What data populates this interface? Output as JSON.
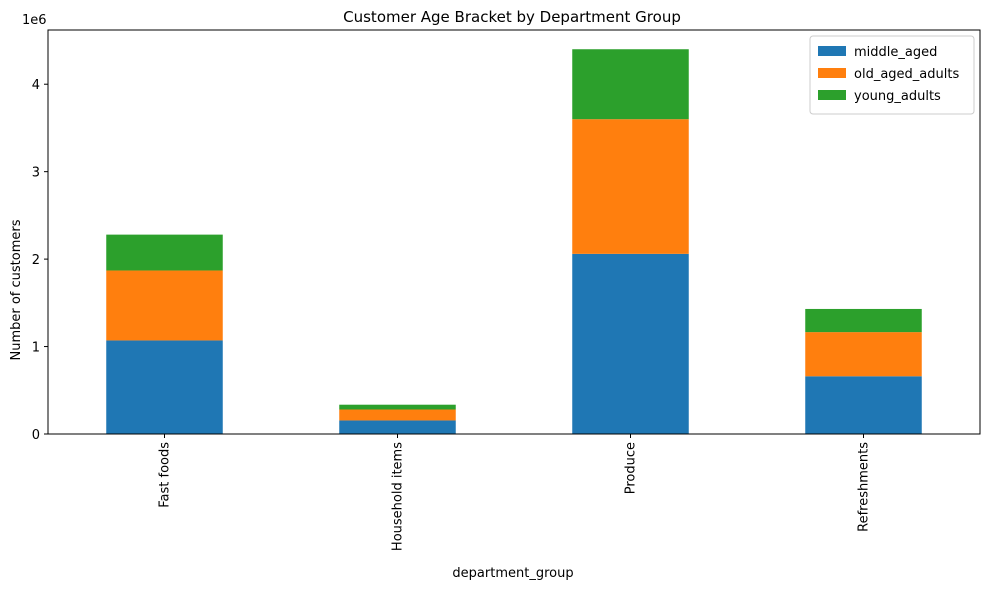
{
  "chart_data": {
    "type": "bar",
    "stacked": true,
    "title": "Customer Age Bracket by Department Group",
    "xlabel": "department_group",
    "ylabel": "Number of customers",
    "y_offset_label": "1e6",
    "ylim": [
      0,
      4620000
    ],
    "yticks": [
      0,
      1000000,
      2000000,
      3000000,
      4000000
    ],
    "ytick_labels": [
      "0",
      "1",
      "2",
      "3",
      "4"
    ],
    "grid": false,
    "legend_position": "top-right",
    "categories": [
      "Fast foods",
      "Household items",
      "Produce",
      "Refreshments"
    ],
    "series": [
      {
        "name": "middle_aged",
        "color": "#1f77b4",
        "values": [
          1070000,
          155000,
          2060000,
          660000
        ]
      },
      {
        "name": "old_aged_adults",
        "color": "#ff7f0e",
        "values": [
          800000,
          125000,
          1540000,
          505000
        ]
      },
      {
        "name": "young_adults",
        "color": "#2ca02c",
        "values": [
          410000,
          55000,
          800000,
          265000
        ]
      }
    ]
  }
}
